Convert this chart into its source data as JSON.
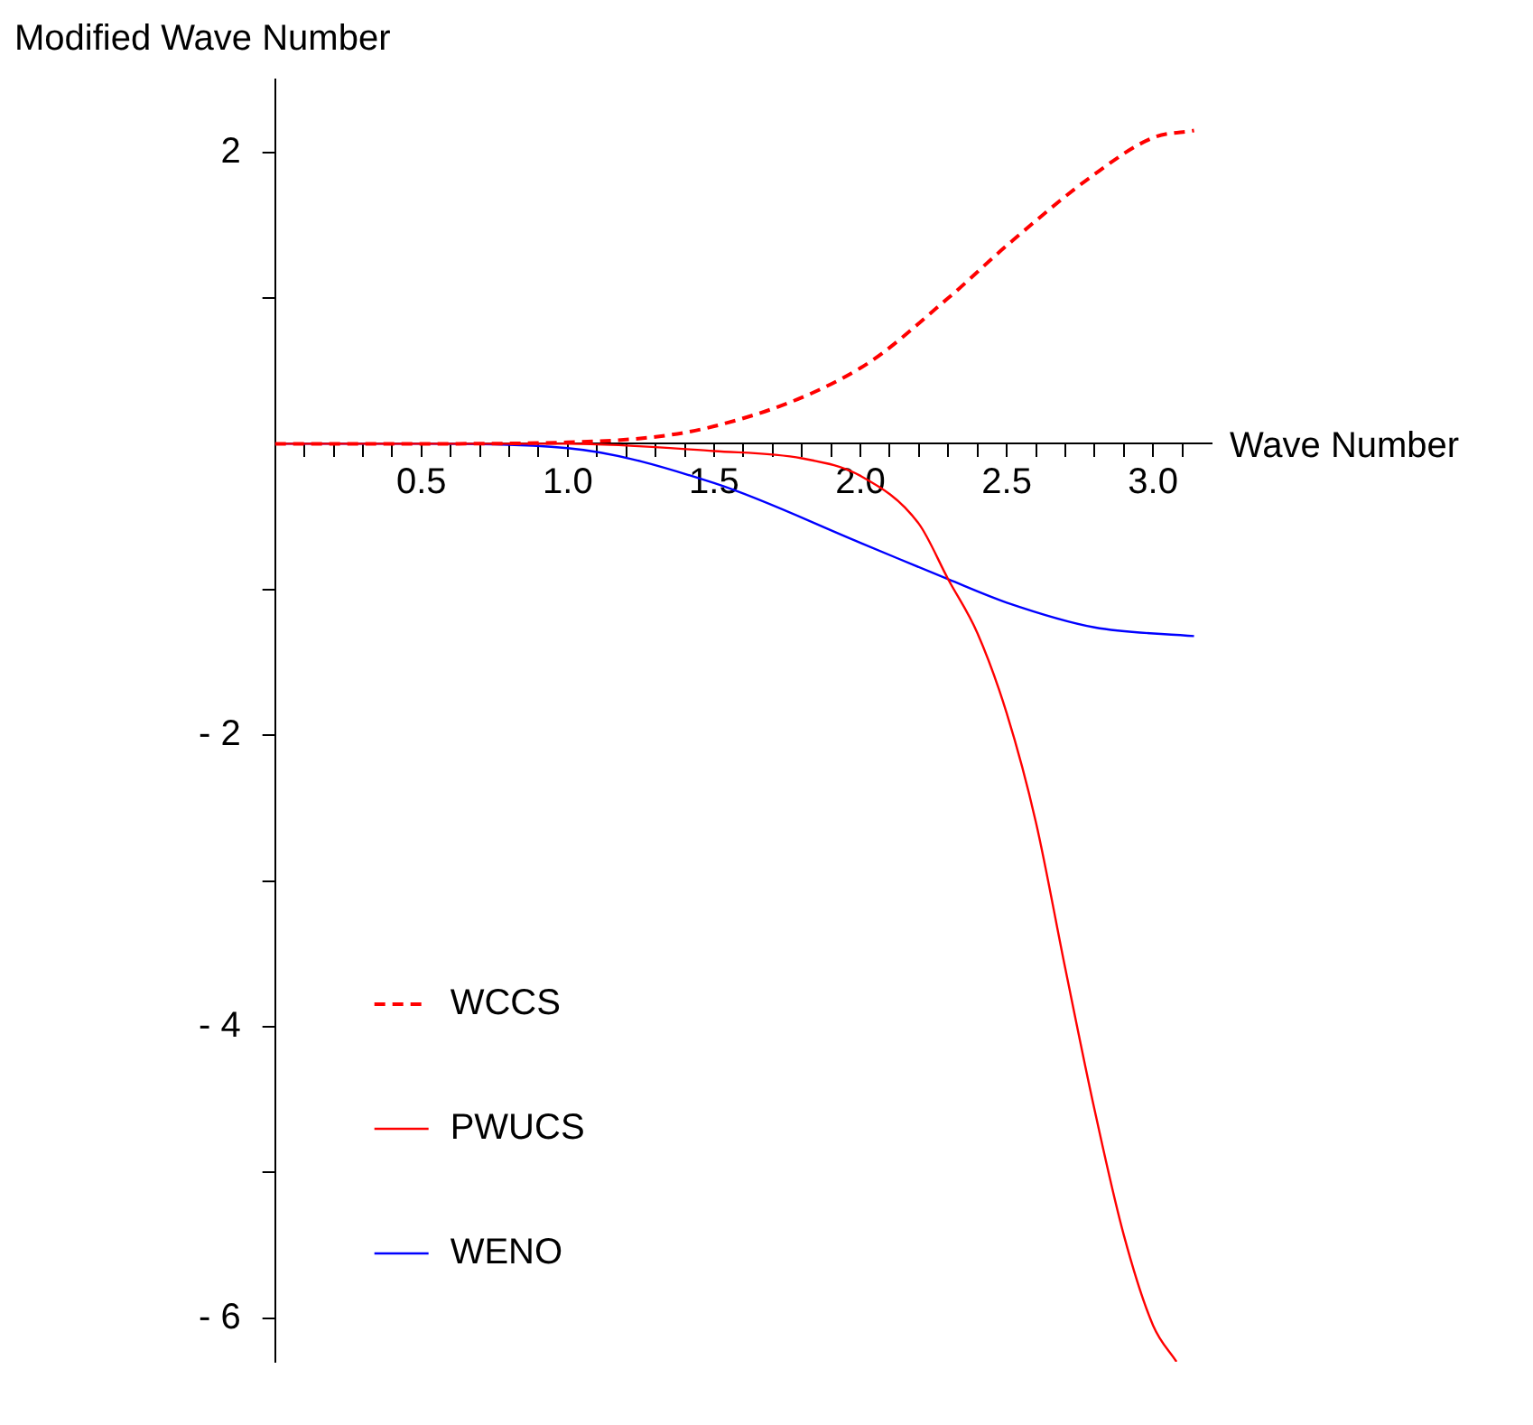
{
  "chart_data": {
    "type": "line",
    "xlabel": "Wave Number",
    "ylabel": "Modified Wave Number",
    "xlim": [
      0,
      3.2
    ],
    "ylim": [
      -6.3,
      2.5
    ],
    "xticks": [
      {
        "value": 0.1,
        "label": null
      },
      {
        "value": 0.2,
        "label": null
      },
      {
        "value": 0.3,
        "label": null
      },
      {
        "value": 0.4,
        "label": null
      },
      {
        "value": 0.5,
        "label": "0.5"
      },
      {
        "value": 0.6,
        "label": null
      },
      {
        "value": 0.7,
        "label": null
      },
      {
        "value": 0.8,
        "label": null
      },
      {
        "value": 0.9,
        "label": null
      },
      {
        "value": 1.0,
        "label": "1.0"
      },
      {
        "value": 1.1,
        "label": null
      },
      {
        "value": 1.2,
        "label": null
      },
      {
        "value": 1.3,
        "label": null
      },
      {
        "value": 1.4,
        "label": null
      },
      {
        "value": 1.5,
        "label": "1.5"
      },
      {
        "value": 1.6,
        "label": null
      },
      {
        "value": 1.7,
        "label": null
      },
      {
        "value": 1.8,
        "label": null
      },
      {
        "value": 1.9,
        "label": null
      },
      {
        "value": 2.0,
        "label": "2.0"
      },
      {
        "value": 2.1,
        "label": null
      },
      {
        "value": 2.2,
        "label": null
      },
      {
        "value": 2.3,
        "label": null
      },
      {
        "value": 2.4,
        "label": null
      },
      {
        "value": 2.5,
        "label": "2.5"
      },
      {
        "value": 2.6,
        "label": null
      },
      {
        "value": 2.7,
        "label": null
      },
      {
        "value": 2.8,
        "label": null
      },
      {
        "value": 2.9,
        "label": null
      },
      {
        "value": 3.0,
        "label": "3.0"
      },
      {
        "value": 3.1,
        "label": null
      }
    ],
    "yticks": [
      {
        "value": -6,
        "label": "- 6"
      },
      {
        "value": -5,
        "label": null
      },
      {
        "value": -4,
        "label": "- 4"
      },
      {
        "value": -3,
        "label": null
      },
      {
        "value": -2,
        "label": "- 2"
      },
      {
        "value": -1,
        "label": null
      },
      {
        "value": 1,
        "label": null
      },
      {
        "value": 2,
        "label": "2"
      }
    ],
    "grid": false,
    "legend": "bottom left",
    "marker": "none",
    "series": [
      {
        "name": "WCCS",
        "color": "#ff0000",
        "line_style": "dashed",
        "x": [
          0,
          0.5,
          1.0,
          1.5,
          2.0,
          2.3,
          2.5,
          2.8,
          3.0,
          3.14
        ],
        "values": [
          0,
          0,
          0.01,
          0.12,
          0.52,
          1.0,
          1.36,
          1.85,
          2.1,
          2.15
        ]
      },
      {
        "name": "PWUCS",
        "color": "#ff0000",
        "line_style": "solid",
        "x": [
          0,
          1.0,
          1.5,
          1.8,
          2.0,
          2.2,
          2.3,
          2.4,
          2.5,
          2.6,
          2.7,
          2.8,
          2.9,
          3.0,
          3.08
        ],
        "values": [
          0,
          0,
          -0.05,
          -0.1,
          -0.22,
          -0.55,
          -0.93,
          -1.3,
          -1.85,
          -2.6,
          -3.6,
          -4.57,
          -5.43,
          -6.05,
          -6.3
        ]
      },
      {
        "name": "WENO",
        "color": "#0000ff",
        "line_style": "solid",
        "x": [
          0,
          0.5,
          1.0,
          1.5,
          2.0,
          2.3,
          2.5,
          2.8,
          3.14
        ],
        "values": [
          0,
          0,
          -0.03,
          -0.27,
          -0.68,
          -0.93,
          -1.09,
          -1.26,
          -1.32
        ]
      }
    ]
  }
}
